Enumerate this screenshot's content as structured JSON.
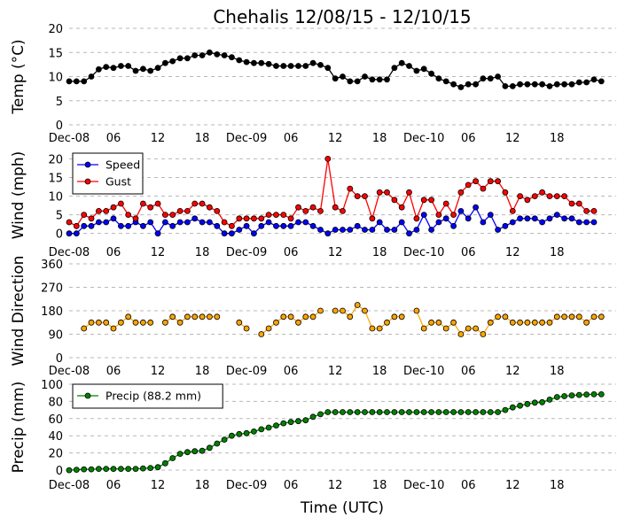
{
  "figure_title": "Chehalis 12/08/15 - 12/10/15",
  "xlabel": "Time (UTC)",
  "x_tick_labels": [
    "Dec-08",
    "06",
    "12",
    "18",
    "Dec-09",
    "06",
    "12",
    "18",
    "Dec-10",
    "06",
    "12",
    "18"
  ],
  "chart_data": [
    {
      "type": "line",
      "ylabel": "Temp (°C)",
      "ylim": [
        0,
        20
      ],
      "yticks": [
        0,
        5,
        10,
        15,
        20
      ],
      "grid": true,
      "x_unit": "hours since Dec-08 00:00 UTC",
      "series": [
        {
          "color": "#000000",
          "values": [
            9,
            9,
            9,
            10,
            11.5,
            12,
            11.8,
            12.2,
            12.2,
            11.2,
            11.6,
            11.2,
            11.8,
            12.8,
            13.2,
            13.8,
            13.8,
            14.4,
            14.4,
            15,
            14.6,
            14.4,
            14,
            13.4,
            13,
            12.8,
            12.8,
            12.6,
            12.2,
            12.2,
            12.2,
            12.2,
            12.2,
            12.8,
            12.4,
            11.8,
            9.6,
            10,
            9,
            9,
            10,
            9.4,
            9.4,
            9.4,
            11.8,
            12.8,
            12.2,
            11.2,
            11.6,
            10.6,
            9.6,
            9,
            8.4,
            7.8,
            8.4,
            8.4,
            9.6,
            9.6,
            10,
            8,
            8,
            8.4,
            8.4,
            8.4,
            8.4,
            8,
            8.4,
            8.4,
            8.4,
            8.8,
            8.8,
            9.4,
            9
          ]
        }
      ]
    },
    {
      "type": "line",
      "ylabel": "Wind (mph)",
      "ylim": [
        -1.5,
        22
      ],
      "yticks": [
        0,
        5,
        10,
        15,
        20
      ],
      "grid": true,
      "legend": "top-left",
      "series": [
        {
          "name": "Speed",
          "color": "#0000ff",
          "values": [
            0,
            0,
            2,
            2,
            3,
            3,
            4,
            2,
            2,
            3,
            2,
            3,
            0,
            3,
            2,
            3,
            3,
            4,
            3,
            3,
            2,
            0,
            0,
            1,
            2,
            0,
            2,
            3,
            2,
            2,
            2,
            3,
            3,
            2,
            1,
            0,
            1,
            1,
            1,
            2,
            1,
            1,
            3,
            1,
            1,
            3,
            0,
            1,
            5,
            1,
            3,
            4,
            2,
            6,
            4,
            7,
            3,
            5,
            1,
            2,
            3,
            4,
            4,
            4,
            3,
            4,
            5,
            4,
            4,
            3,
            3,
            3
          ]
        },
        {
          "name": "Gust",
          "color": "#ff0000",
          "values": [
            3,
            2,
            5,
            4,
            6,
            6,
            7,
            8,
            5,
            4,
            8,
            7,
            8,
            5,
            5,
            6,
            6,
            8,
            8,
            7,
            6,
            3,
            2,
            4,
            4,
            4,
            4,
            5,
            5,
            5,
            4,
            7,
            6,
            7,
            6,
            20,
            7,
            6,
            12,
            10,
            10,
            4,
            11,
            11,
            9,
            7,
            11,
            4,
            9,
            9,
            5,
            8,
            5,
            11,
            13,
            14,
            12,
            14,
            14,
            11,
            6,
            10,
            9,
            10,
            11,
            10,
            10,
            10,
            8,
            8,
            6,
            6
          ]
        }
      ]
    },
    {
      "type": "scatter",
      "ylabel": "Wind Direction",
      "ylim": [
        0,
        360
      ],
      "yticks": [
        0,
        90,
        180,
        270,
        360
      ],
      "grid": true,
      "series": [
        {
          "color": "#ffa500",
          "values": [
            null,
            null,
            112,
            135,
            135,
            135,
            112,
            135,
            157,
            135,
            135,
            135,
            null,
            135,
            157,
            135,
            157,
            157,
            157,
            157,
            157,
            null,
            null,
            135,
            112,
            null,
            90,
            112,
            135,
            157,
            157,
            135,
            157,
            157,
            180,
            null,
            180,
            180,
            157,
            202,
            180,
            112,
            112,
            135,
            157,
            157,
            null,
            180,
            112,
            135,
            135,
            112,
            135,
            90,
            112,
            112,
            90,
            135,
            157,
            157,
            135,
            135,
            135,
            135,
            135,
            135,
            157,
            157,
            157,
            157,
            135,
            157,
            157
          ]
        }
      ]
    },
    {
      "type": "line",
      "ylabel": "Precip (mm)",
      "ylim": [
        -2,
        102
      ],
      "yticks": [
        0,
        20,
        40,
        60,
        80,
        100
      ],
      "grid": true,
      "legend": "top-left",
      "series": [
        {
          "name": "Precip (88.2 mm)",
          "color": "#008000",
          "values": [
            0,
            0.5,
            1,
            1,
            1.5,
            1.5,
            1.5,
            1.5,
            1.5,
            1.5,
            2,
            2.5,
            3.5,
            8,
            14,
            19,
            21,
            22,
            22.5,
            26,
            31,
            35.5,
            40,
            42,
            43,
            45,
            47.5,
            49.5,
            52,
            54.5,
            56,
            57,
            58,
            62,
            65,
            67.5,
            67.5,
            67.5,
            67.5,
            67.5,
            67.5,
            67.5,
            67.5,
            67.5,
            67.5,
            67.5,
            67.5,
            67.5,
            67.5,
            67.5,
            67.5,
            67.5,
            67.5,
            67.5,
            67.5,
            67.5,
            67.5,
            67.5,
            67.5,
            70,
            73,
            75,
            77,
            78.5,
            79,
            82,
            85,
            86,
            87,
            87.5,
            88,
            88.2,
            88.2
          ]
        }
      ]
    }
  ]
}
